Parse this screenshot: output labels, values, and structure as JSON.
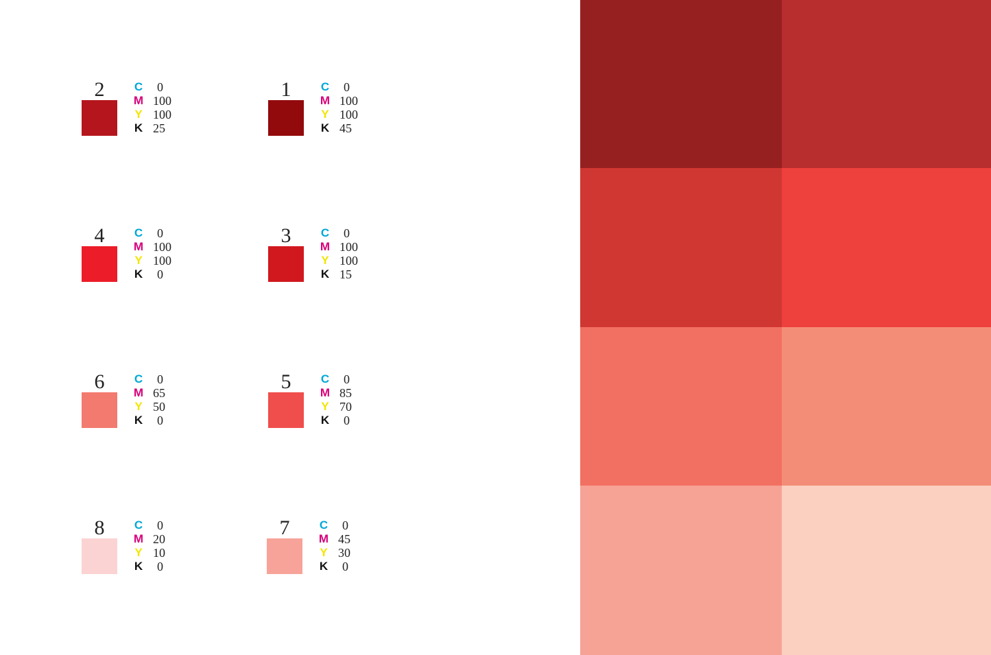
{
  "legend_colors": {
    "C": "#00A8D6",
    "M": "#D6007A",
    "Y": "#F2E600",
    "K": "#111111"
  },
  "entries": [
    {
      "number": "2",
      "swatch_color": "#B5161D",
      "cmyk": {
        "C": "0",
        "M": "100",
        "Y": "100",
        "K": "25"
      }
    },
    {
      "number": "1",
      "swatch_color": "#920A0C",
      "cmyk": {
        "C": "0",
        "M": "100",
        "Y": "100",
        "K": "45"
      }
    },
    {
      "number": "4",
      "swatch_color": "#EC1C28",
      "cmyk": {
        "C": "0",
        "M": "100",
        "Y": "100",
        "K": "0"
      }
    },
    {
      "number": "3",
      "swatch_color": "#D1181F",
      "cmyk": {
        "C": "0",
        "M": "100",
        "Y": "100",
        "K": "15"
      }
    },
    {
      "number": "6",
      "swatch_color": "#F37A6E",
      "cmyk": {
        "C": "0",
        "M": "65",
        "Y": "50",
        "K": "0"
      }
    },
    {
      "number": "5",
      "swatch_color": "#EF4E4C",
      "cmyk": {
        "C": "0",
        "M": "85",
        "Y": "70",
        "K": "0"
      }
    },
    {
      "number": "8",
      "swatch_color": "#FBD3D3",
      "cmyk": {
        "C": "0",
        "M": "20",
        "Y": "10",
        "K": "0"
      }
    },
    {
      "number": "7",
      "swatch_color": "#F7A399",
      "cmyk": {
        "C": "0",
        "M": "45",
        "Y": "30",
        "K": "0"
      }
    }
  ],
  "panel_colors": [
    "#961F20",
    "#B82D2D",
    "#D03733",
    "#EE403C",
    "#F27061",
    "#F48D77",
    "#F6A295",
    "#FBD0C1"
  ]
}
